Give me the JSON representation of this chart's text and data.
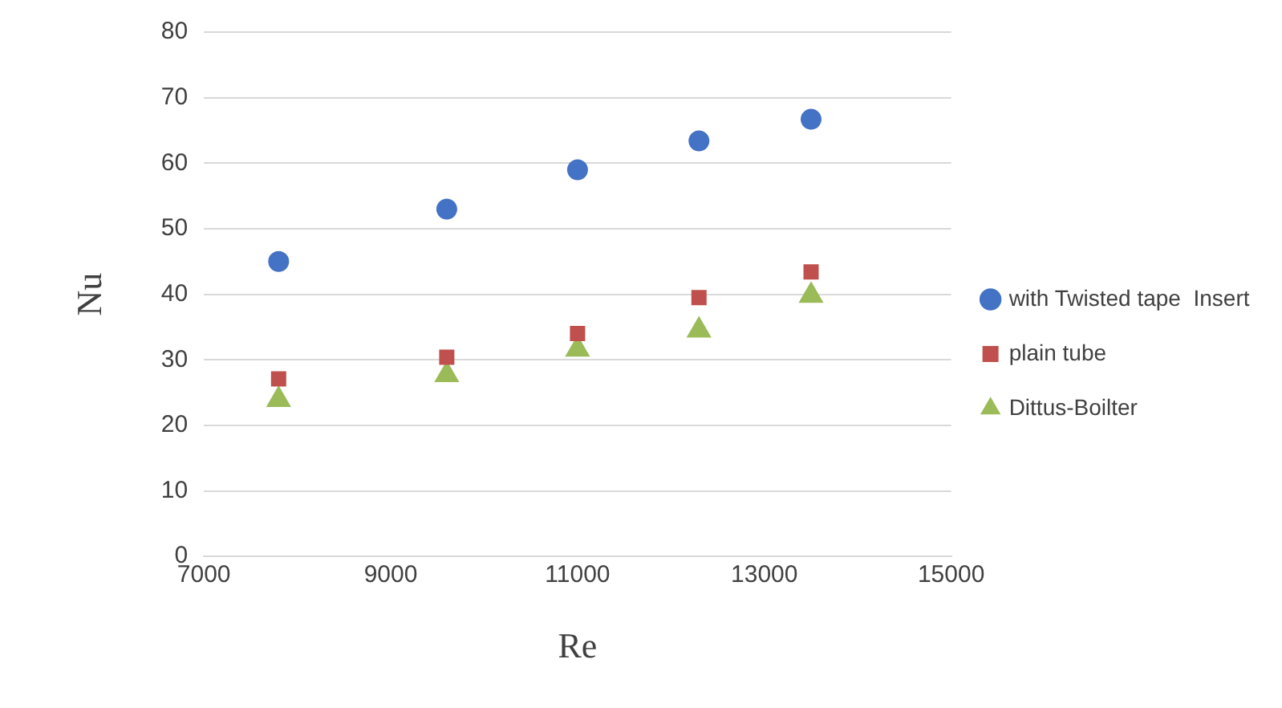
{
  "chart_data": {
    "type": "scatter",
    "xlabel": "Re",
    "ylabel": "Nu",
    "xlim": [
      7000,
      15000
    ],
    "xticks": [
      7000,
      9000,
      11000,
      13000,
      15000
    ],
    "ylim": [
      0,
      80
    ],
    "yticks": [
      0,
      10,
      20,
      30,
      40,
      50,
      60,
      70,
      80
    ],
    "grid": "y",
    "legend": "right",
    "x": [
      7800,
      9600,
      11000,
      12300,
      13500
    ],
    "series": [
      {
        "name": "with Twisted tape  Insert",
        "color": "#4472c4",
        "marker": "circle",
        "values": [
          45,
          53,
          59,
          63.4,
          66.7
        ]
      },
      {
        "name": "plain tube",
        "color": "#c0504d",
        "marker": "square",
        "values": [
          27.1,
          30.4,
          34,
          39.5,
          43.4
        ]
      },
      {
        "name": "Dittus-Boilter",
        "color": "#9bbb59",
        "marker": "triangle",
        "values": [
          23.9,
          27.7,
          31.6,
          34.5,
          39.8
        ]
      }
    ]
  }
}
